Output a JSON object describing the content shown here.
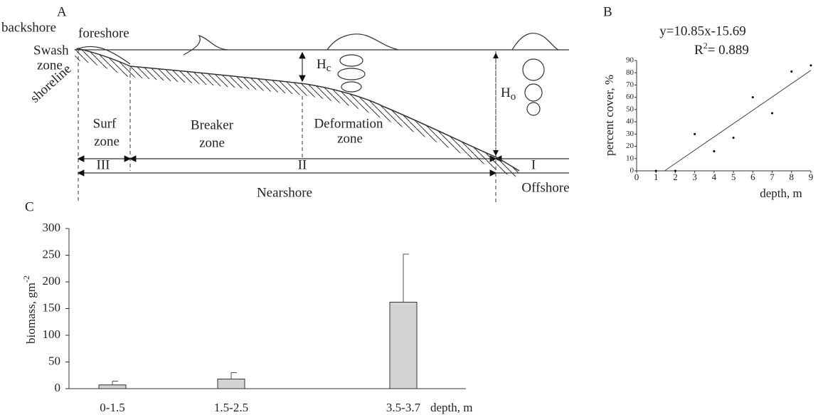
{
  "diagram": {
    "panel": "A",
    "backshore": "backshore",
    "foreshore": "foreshore",
    "swash": [
      "Swash",
      "zone"
    ],
    "shoreline": "shoreline",
    "hc": {
      "main": "H",
      "sub": "c"
    },
    "ho": {
      "main": "H",
      "sub": "o"
    },
    "surf_zone": [
      "Surf",
      "zone"
    ],
    "breaker_zone": [
      "Breaker",
      "zone"
    ],
    "deformation_zone": [
      "Deformation",
      "zone"
    ],
    "zones": [
      "III",
      "II",
      "I"
    ],
    "nearshore": "Nearshore",
    "offshore": "Offshore"
  },
  "chart_data": [
    {
      "type": "scatter",
      "panel": "B",
      "annotation": "y=10.85x-15.69",
      "r2": {
        "base": "R",
        "sup": "2",
        "rest": "= 0.889"
      },
      "x": [
        1,
        2,
        3,
        4,
        5,
        6,
        7,
        8,
        9
      ],
      "values": [
        0,
        0,
        30,
        16,
        27,
        60,
        47,
        81,
        86
      ],
      "fit": {
        "slope": 10.85,
        "intercept": -15.69
      },
      "color": "#000000",
      "xlabel": "depth, m",
      "ylabel": "percent cover, %",
      "xlim": [
        0,
        9
      ],
      "ylim": [
        0,
        90
      ],
      "xticks": [
        0,
        1,
        2,
        3,
        4,
        5,
        6,
        7,
        8,
        9
      ],
      "yticks": [
        0,
        10,
        20,
        30,
        40,
        50,
        60,
        70,
        80,
        90
      ]
    },
    {
      "type": "bar",
      "panel": "C",
      "categories": [
        "0-1.5",
        "1.5-2.5",
        "3.5-3.7"
      ],
      "values": [
        7,
        18,
        162
      ],
      "errors": [
        7,
        12,
        90
      ],
      "color": "#d3d3d3",
      "xlabel": "depth, m",
      "ylabel": {
        "text": "biomass, gm",
        "sup": "-2"
      },
      "ylim": [
        0,
        300
      ],
      "yticks": [
        0,
        50,
        100,
        150,
        200,
        250,
        300
      ]
    }
  ]
}
